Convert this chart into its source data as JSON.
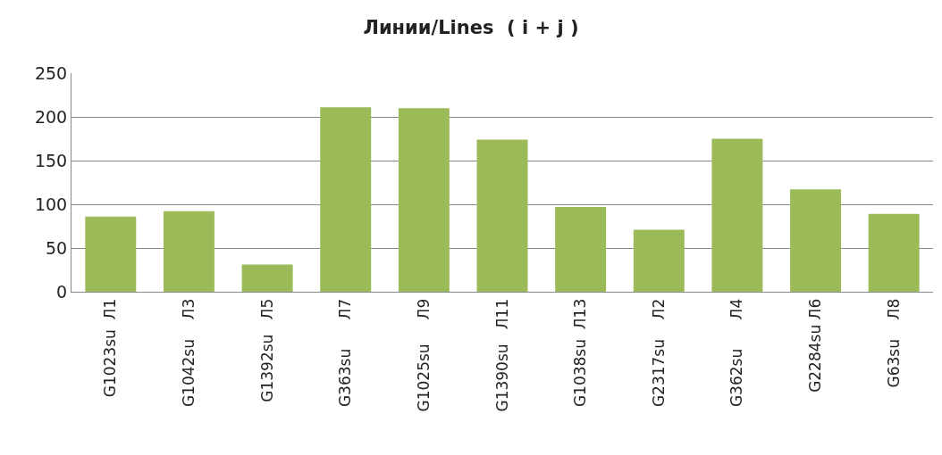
{
  "chart_data": {
    "type": "bar",
    "title": "Линии/Lines  ( i + j )",
    "categories": [
      "G1023su  Л1",
      "G1042su    Л3",
      "G1392su   Л5",
      "G363su      Л7",
      "G1025su     Л9",
      "G1390su   Л11",
      "G1038su  Л13",
      "G2317su    Л2",
      "G362su      Л4",
      "G2284su Л6",
      "G63su    Л8"
    ],
    "values": [
      86,
      92,
      31,
      211,
      210,
      174,
      97,
      71,
      175,
      117,
      89
    ],
    "color": "#9bbb59",
    "ylim": [
      0,
      250
    ],
    "yticks": [
      0,
      50,
      100,
      150,
      200,
      250
    ],
    "grid": "y",
    "legend": false
  }
}
